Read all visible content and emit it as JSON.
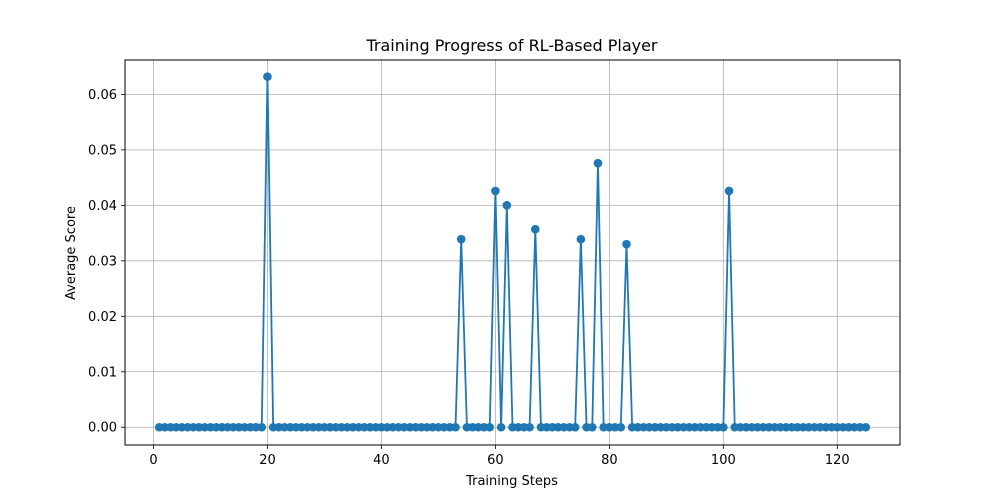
{
  "chart_data": {
    "type": "line",
    "title": "Training Progress of RL-Based Player",
    "xlabel": "Training Steps",
    "ylabel": "Average Score",
    "xlim": [
      -5,
      131
    ],
    "ylim": [
      -0.0032,
      0.0662
    ],
    "xticks": [
      0,
      20,
      40,
      60,
      80,
      100,
      120
    ],
    "yticks": [
      0.0,
      0.01,
      0.02,
      0.03,
      0.04,
      0.05,
      0.06
    ],
    "grid": true,
    "color": "#1f77b4",
    "marker": "circle",
    "x_start": 1,
    "x_end": 125,
    "baseline": 0,
    "peaks": [
      {
        "x": 20,
        "y": 0.0632
      },
      {
        "x": 54,
        "y": 0.0339
      },
      {
        "x": 60,
        "y": 0.0426
      },
      {
        "x": 62,
        "y": 0.04
      },
      {
        "x": 67,
        "y": 0.0357
      },
      {
        "x": 75,
        "y": 0.0339
      },
      {
        "x": 78,
        "y": 0.0476
      },
      {
        "x": 83,
        "y": 0.033
      },
      {
        "x": 101,
        "y": 0.0426
      }
    ]
  }
}
